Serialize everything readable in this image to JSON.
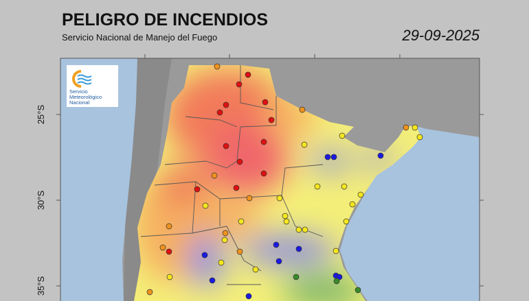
{
  "header": {
    "title": "PELIGRO DE INCENDIOS",
    "subtitle": "Servicio Nacional de Manejo del Fuego",
    "date": "29-09-2025"
  },
  "logo": {
    "lines": [
      "Servicio",
      "Meteorológico",
      "Nacional"
    ]
  },
  "map": {
    "lat_labels": [
      "25°S",
      "30°S",
      "35°S"
    ]
  }
}
